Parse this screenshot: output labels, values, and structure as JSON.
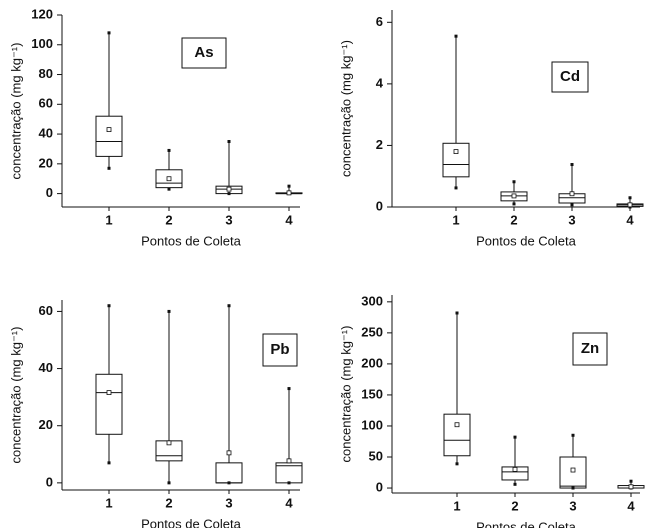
{
  "chart_data": [
    {
      "type": "box",
      "label": "As",
      "categories": [
        "1",
        "2",
        "3",
        "4"
      ],
      "xlabel": "Pontos de Coleta",
      "ylabel": "concentração (mg kg⁻¹)",
      "ylim": [
        -9,
        120
      ],
      "yticks": [
        0,
        20,
        40,
        60,
        80,
        100,
        120
      ],
      "boxes": [
        {
          "min": 17,
          "q1": 25,
          "median": 35,
          "q3": 52,
          "max": 108,
          "mean": 43
        },
        {
          "min": 3,
          "q1": 4,
          "median": 7,
          "q3": 16,
          "max": 29,
          "mean": 10
        },
        {
          "min": 0,
          "q1": 0,
          "median": 3,
          "q3": 5,
          "max": 35,
          "mean": 3
        },
        {
          "min": 0,
          "q1": 0,
          "median": 0,
          "q3": 0.5,
          "max": 5,
          "mean": 0.5
        }
      ]
    },
    {
      "type": "box",
      "label": "Cd",
      "categories": [
        "1",
        "2",
        "3",
        "4"
      ],
      "xlabel": "Pontos de Coleta",
      "ylabel": "concentração (mg kg⁻¹)",
      "ylim": [
        0,
        6.4
      ],
      "yticks": [
        0,
        2,
        4,
        6
      ],
      "boxes": [
        {
          "min": 0.62,
          "q1": 0.98,
          "median": 1.38,
          "q3": 2.07,
          "max": 5.55,
          "mean": 1.8
        },
        {
          "min": 0.1,
          "q1": 0.2,
          "median": 0.36,
          "q3": 0.49,
          "max": 0.82,
          "mean": 0.36
        },
        {
          "min": 0.07,
          "q1": 0.13,
          "median": 0.3,
          "q3": 0.43,
          "max": 1.38,
          "mean": 0.43
        },
        {
          "min": 0,
          "q1": 0.02,
          "median": 0.07,
          "q3": 0.1,
          "max": 0.3,
          "mean": 0.07
        }
      ]
    },
    {
      "type": "box",
      "label": "Pb",
      "categories": [
        "1",
        "2",
        "3",
        "4"
      ],
      "xlabel": "Pontos de Coleta",
      "ylabel": "concentração (mg kg⁻¹)",
      "ylim": [
        -2.5,
        64
      ],
      "yticks": [
        0,
        20,
        40,
        60
      ],
      "boxes": [
        {
          "min": 7,
          "q1": 17,
          "median": 31.6,
          "q3": 38,
          "max": 62,
          "mean": 31.6
        },
        {
          "min": 0,
          "q1": 7.7,
          "median": 9.5,
          "q3": 14.7,
          "max": 60,
          "mean": 14
        },
        {
          "min": 0,
          "q1": 0,
          "median": 0,
          "q3": 7,
          "max": 62,
          "mean": 10.5
        },
        {
          "min": 0,
          "q1": 0,
          "median": 6,
          "q3": 7,
          "max": 33,
          "mean": 7.7
        }
      ]
    },
    {
      "type": "box",
      "label": "Zn",
      "categories": [
        "1",
        "2",
        "3",
        "4"
      ],
      "xlabel": "Pontos de Coleta",
      "ylabel": "concentração (mg kg⁻¹)",
      "ylim": [
        -8,
        311
      ],
      "yticks": [
        0,
        50,
        100,
        150,
        200,
        250,
        300
      ],
      "boxes": [
        {
          "min": 39,
          "q1": 52,
          "median": 77,
          "q3": 119,
          "max": 282,
          "mean": 102
        },
        {
          "min": 6,
          "q1": 13,
          "median": 26,
          "q3": 34,
          "max": 82,
          "mean": 30
        },
        {
          "min": 0,
          "q1": 0,
          "median": 3,
          "q3": 50,
          "max": 85,
          "mean": 29
        },
        {
          "min": 0,
          "q1": 0,
          "median": 0,
          "q3": 4,
          "max": 11,
          "mean": 2
        }
      ]
    }
  ]
}
